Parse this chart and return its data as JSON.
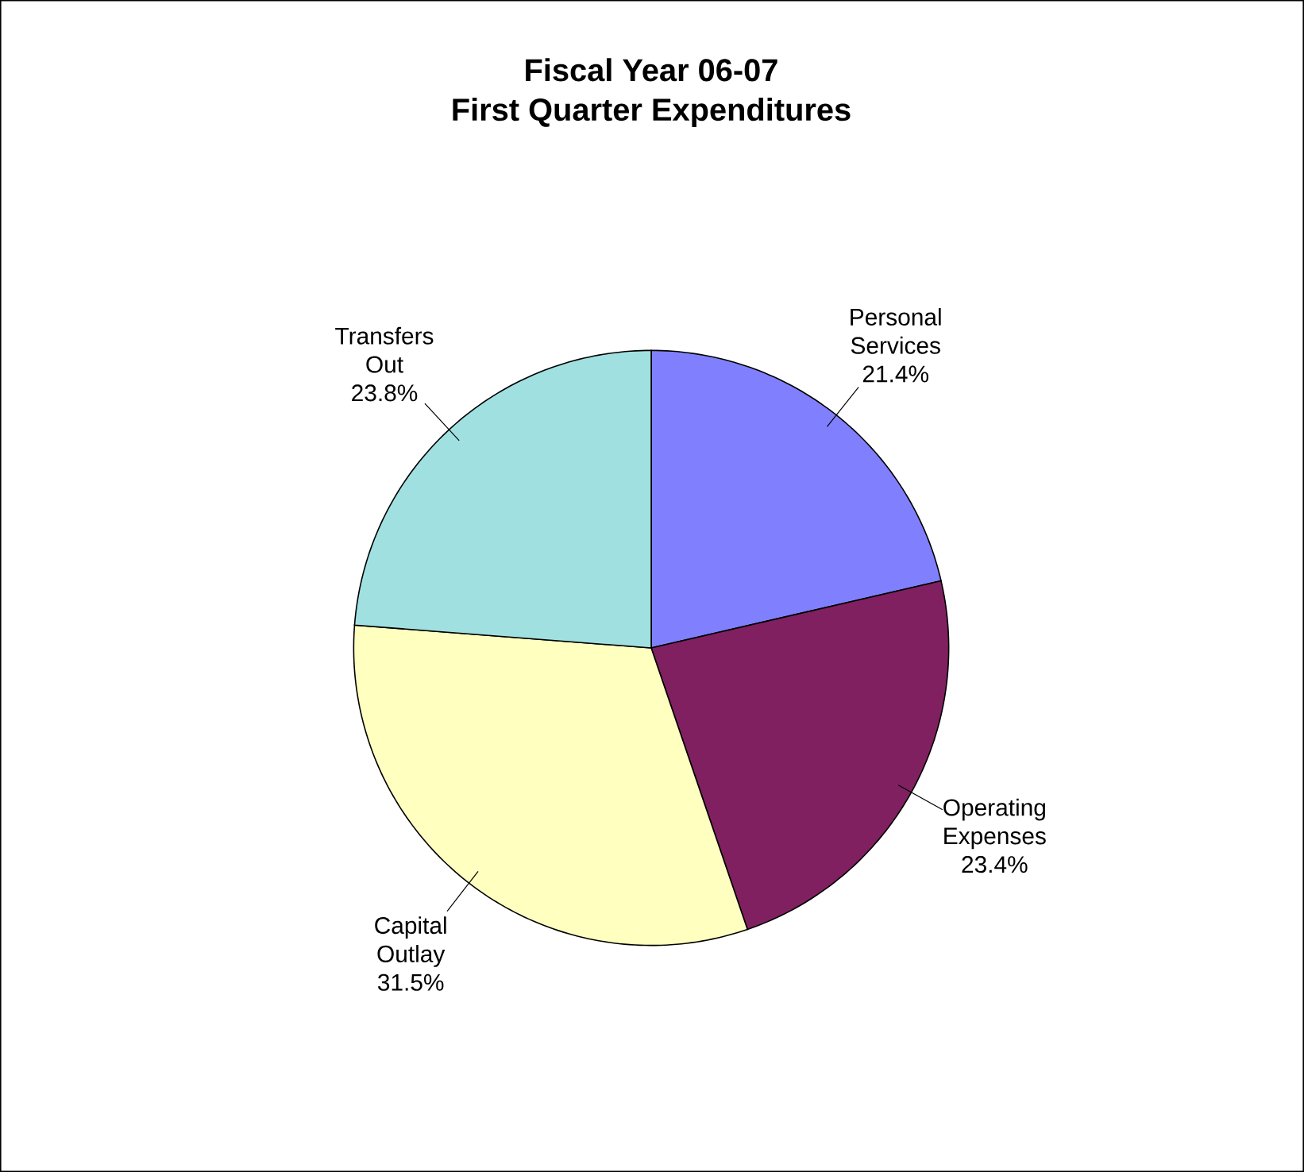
{
  "chart_data": {
    "type": "pie",
    "title": "Fiscal Year 06-07",
    "subtitle": "First Quarter Expenditures",
    "categories": [
      "Personal Services",
      "Operating Expenses",
      "Capital Outlay",
      "Transfers Out"
    ],
    "values": [
      21.4,
      23.4,
      31.5,
      23.8
    ],
    "value_labels": [
      "21.4%",
      "23.4%",
      "31.5%",
      "23.8%"
    ],
    "colors": [
      "#8080ff",
      "#802060",
      "#ffffc0",
      "#a0e0e0"
    ]
  }
}
